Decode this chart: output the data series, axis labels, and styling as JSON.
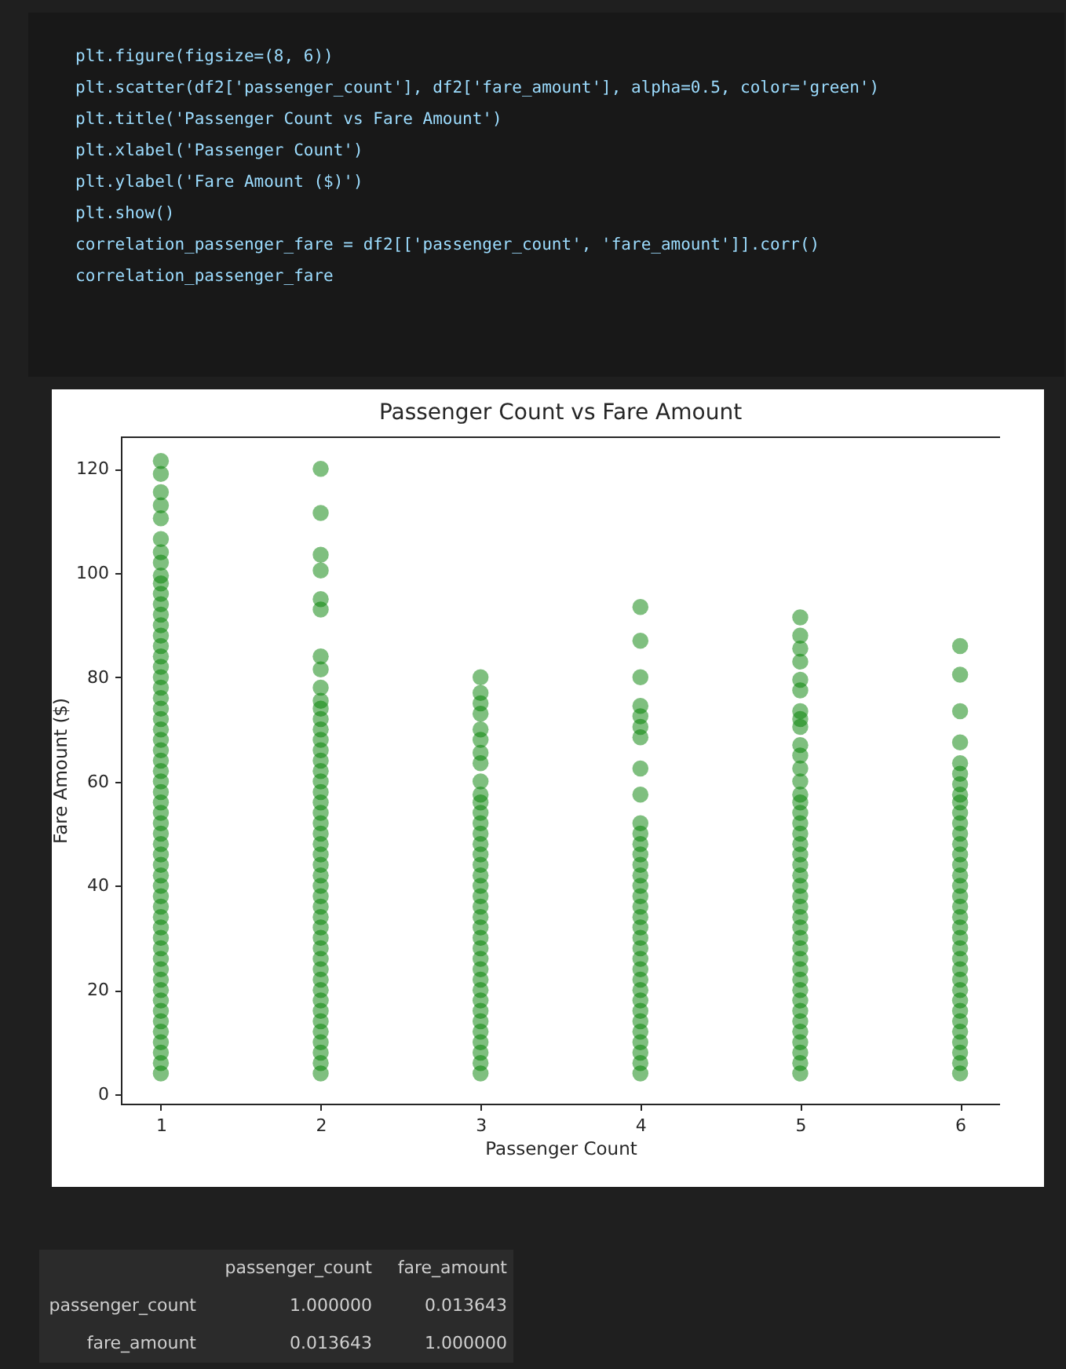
{
  "chart_data": [
    {
      "type": "other",
      "annotations": [
        "plt.figure(figsize=(8, 6))",
        "plt.scatter(df2['passenger_count'], df2['fare_amount'], alpha=0.5, color='green')",
        "plt.title('Passenger Count vs Fare Amount')",
        "plt.xlabel('Passenger Count')",
        "plt.ylabel('Fare Amount ($)')",
        "plt.show()",
        "correlation_passenger_fare = df2[['passenger_count', 'fare_amount']].corr()",
        "correlation_passenger_fare"
      ]
    },
    {
      "type": "scatter",
      "title": "Passenger Count vs Fare Amount",
      "xlabel": "Passenger Count",
      "ylabel": "Fare Amount ($)",
      "xlim": [
        0.75,
        6.25
      ],
      "ylim": [
        -1.8,
        126.2
      ],
      "xticks": [
        1,
        2,
        3,
        4,
        5,
        6
      ],
      "yticks": [
        0,
        20,
        40,
        60,
        80,
        100,
        120
      ],
      "marker": "circle",
      "grid": false,
      "series": [
        {
          "color": "#008000",
          "x": [
            1,
            1,
            1,
            1,
            1,
            1,
            1,
            1,
            1,
            1,
            1,
            1,
            1,
            1,
            1,
            1,
            1,
            1,
            1,
            1,
            1,
            1,
            1,
            1,
            1,
            1,
            1,
            1,
            1,
            1,
            1,
            1,
            1,
            1,
            1,
            1,
            1,
            1,
            1,
            1,
            1,
            1,
            1,
            1,
            1,
            1,
            1,
            1,
            1,
            1,
            1,
            1,
            1,
            1,
            1,
            1,
            1
          ],
          "values": [
            4,
            6,
            8,
            10,
            12,
            14,
            16,
            18,
            20,
            22,
            24,
            26,
            28,
            30,
            32,
            34,
            36,
            38,
            40,
            42,
            44,
            46,
            48,
            50,
            52,
            54,
            56,
            58,
            60,
            62,
            64,
            66,
            68,
            70,
            72,
            74,
            76,
            78,
            80,
            82,
            84,
            86,
            88,
            90,
            92,
            94,
            96,
            98,
            99.5,
            102,
            104,
            106.5,
            110.5,
            113,
            115.5,
            119,
            121.5
          ]
        },
        {
          "color": "#008000",
          "x": [
            2,
            2,
            2,
            2,
            2,
            2,
            2,
            2,
            2,
            2,
            2,
            2,
            2,
            2,
            2,
            2,
            2,
            2,
            2,
            2,
            2,
            2,
            2,
            2,
            2,
            2,
            2,
            2,
            2,
            2,
            2,
            2,
            2,
            2,
            2,
            2,
            2,
            2,
            2,
            2,
            2,
            2,
            2,
            2,
            2,
            2
          ],
          "values": [
            4,
            6,
            8,
            10,
            12,
            14,
            16,
            18,
            20,
            22,
            24,
            26,
            28,
            30,
            32,
            34,
            36,
            38,
            40,
            42,
            44,
            46,
            48,
            50,
            52,
            54,
            56,
            58,
            60,
            62,
            64,
            66,
            68,
            70,
            72,
            74,
            75.5,
            78,
            81.5,
            84,
            93,
            95,
            100.5,
            103.5,
            111.5,
            120
          ]
        },
        {
          "color": "#008000",
          "x": [
            3,
            3,
            3,
            3,
            3,
            3,
            3,
            3,
            3,
            3,
            3,
            3,
            3,
            3,
            3,
            3,
            3,
            3,
            3,
            3,
            3,
            3,
            3,
            3,
            3,
            3,
            3,
            3,
            3,
            3,
            3,
            3,
            3,
            3,
            3,
            3,
            3
          ],
          "values": [
            4,
            6,
            8,
            10,
            12,
            14,
            16,
            18,
            20,
            22,
            24,
            26,
            28,
            30,
            32,
            34,
            36,
            38,
            40,
            42,
            44,
            46,
            48,
            50,
            52,
            54,
            56,
            57.5,
            60,
            63.5,
            65.5,
            68,
            70,
            73,
            75,
            77,
            80
          ]
        },
        {
          "color": "#008000",
          "x": [
            4,
            4,
            4,
            4,
            4,
            4,
            4,
            4,
            4,
            4,
            4,
            4,
            4,
            4,
            4,
            4,
            4,
            4,
            4,
            4,
            4,
            4,
            4,
            4,
            4,
            4,
            4,
            4,
            4,
            4,
            4,
            4,
            4,
            4
          ],
          "values": [
            4,
            6,
            8,
            10,
            12,
            14,
            16,
            18,
            20,
            22,
            24,
            26,
            28,
            30,
            32,
            34,
            36,
            38,
            40,
            42,
            44,
            46,
            48,
            50,
            52,
            57.5,
            62.5,
            68.5,
            70.5,
            72.5,
            74.5,
            80,
            87,
            93.5
          ]
        },
        {
          "color": "#008000",
          "x": [
            5,
            5,
            5,
            5,
            5,
            5,
            5,
            5,
            5,
            5,
            5,
            5,
            5,
            5,
            5,
            5,
            5,
            5,
            5,
            5,
            5,
            5,
            5,
            5,
            5,
            5,
            5,
            5,
            5,
            5,
            5,
            5,
            5,
            5,
            5,
            5,
            5,
            5,
            5,
            5,
            5
          ],
          "values": [
            4,
            6,
            8,
            10,
            12,
            14,
            16,
            18,
            20,
            22,
            24,
            26,
            28,
            30,
            32,
            34,
            36,
            38,
            40,
            42,
            44,
            46,
            48,
            50,
            52,
            54,
            56,
            57.5,
            60,
            62.5,
            65,
            67,
            70.5,
            72,
            73.5,
            77.5,
            79.5,
            83,
            85.5,
            88,
            91.5
          ]
        },
        {
          "color": "#008000",
          "x": [
            6,
            6,
            6,
            6,
            6,
            6,
            6,
            6,
            6,
            6,
            6,
            6,
            6,
            6,
            6,
            6,
            6,
            6,
            6,
            6,
            6,
            6,
            6,
            6,
            6,
            6,
            6,
            6,
            6,
            6,
            6,
            6,
            6,
            6,
            6
          ],
          "values": [
            4,
            6,
            8,
            10,
            12,
            14,
            16,
            18,
            20,
            22,
            24,
            26,
            28,
            30,
            32,
            34,
            36,
            38,
            40,
            42,
            44,
            46,
            48,
            50,
            52,
            54,
            56,
            57.5,
            59.5,
            61.5,
            63.5,
            67.5,
            73.5,
            80.5,
            86
          ]
        }
      ]
    },
    {
      "type": "other",
      "categories": [
        "passenger_count",
        "fare_amount"
      ],
      "y_categories": [
        "passenger_count",
        "fare_amount"
      ],
      "cell_labels": [
        [
          "1.000000",
          "0.013643"
        ],
        [
          "0.013643",
          "1.000000"
        ]
      ]
    }
  ]
}
